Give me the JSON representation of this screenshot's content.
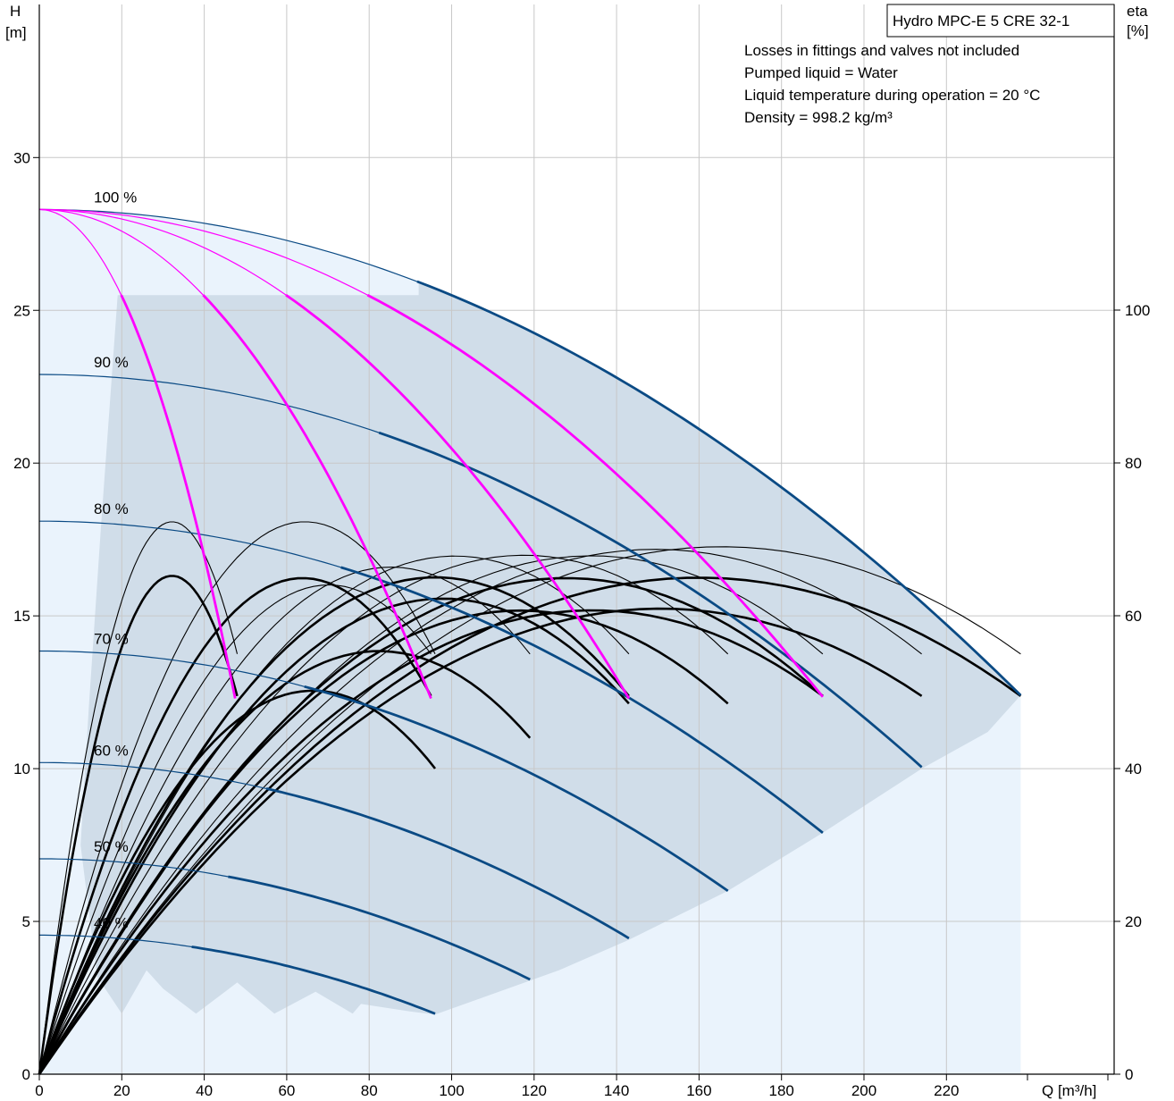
{
  "chart_data": {
    "type": "line",
    "title": "Hydro MPC-E 5 CRE 32-1",
    "notes": [
      "Losses in fittings and valves not included",
      "Pumped liquid = Water",
      "Liquid temperature during operation = 20 °C",
      "Density = 998.2 kg/m³"
    ],
    "xlabel": "Q [m³/h]",
    "ylabel_left": [
      "H",
      "[m]"
    ],
    "ylabel_right": [
      "eta",
      "[%]"
    ],
    "xlim": [
      0,
      260
    ],
    "ylim": [
      0,
      35
    ],
    "ylim_right": [
      0,
      140
    ],
    "x_ticks": [
      0,
      20,
      40,
      60,
      80,
      100,
      120,
      140,
      160,
      180,
      200,
      220
    ],
    "y_ticks": [
      0,
      5,
      10,
      15,
      20,
      25,
      30
    ],
    "y_ticks_right": [
      0,
      20,
      40,
      60,
      80,
      100
    ],
    "grid": true,
    "colors": {
      "speed_curve": "#0a4a84",
      "max_speed_curve": "#ff00ff",
      "efficiency_curve": "#000000",
      "operating_area": "#d0dde9",
      "extended_area": "#eaf3fc",
      "grid": "#c8c8c8"
    },
    "speed_labels": [
      {
        "text": "100 %",
        "h": 28.3
      },
      {
        "text": "90 %",
        "h": 22.9
      },
      {
        "text": "80 %",
        "h": 18.1
      },
      {
        "text": "70 %",
        "h": 13.85
      },
      {
        "text": "60 %",
        "h": 10.2
      },
      {
        "text": "50 %",
        "h": 7.05
      },
      {
        "text": "40 %",
        "h": 4.55
      }
    ],
    "speed_curves": [
      {
        "speed": 100,
        "shutoff_head": 28.3,
        "max_flow": 238,
        "end_head": 12.4
      },
      {
        "speed": 90,
        "shutoff_head": 22.9,
        "max_flow": 214,
        "end_head": 10.05
      },
      {
        "speed": 80,
        "shutoff_head": 18.1,
        "max_flow": 190,
        "end_head": 7.9
      },
      {
        "speed": 70,
        "shutoff_head": 13.85,
        "max_flow": 167,
        "end_head": 6.0
      },
      {
        "speed": 60,
        "shutoff_head": 10.2,
        "max_flow": 143,
        "end_head": 4.45
      },
      {
        "speed": 50,
        "shutoff_head": 7.05,
        "max_flow": 119,
        "end_head": 3.1
      },
      {
        "speed": 40,
        "shutoff_head": 4.55,
        "max_flow": 96,
        "end_head": 1.98
      }
    ],
    "max_speed_pump_curves": [
      {
        "pumps": 1,
        "max_flow": 47.5,
        "end_head": 12.3
      },
      {
        "pumps": 2,
        "max_flow": 95,
        "end_head": 12.3
      },
      {
        "pumps": 3,
        "max_flow": 143,
        "end_head": 12.3
      },
      {
        "pumps": 4,
        "max_flow": 190,
        "end_head": 12.35
      },
      {
        "pumps": 5,
        "max_flow": 238,
        "end_head": 12.4
      }
    ],
    "efficiency_curves": [
      {
        "q_best": 32,
        "eta_best": 72,
        "q_end": 48,
        "eta_end": 55
      },
      {
        "q_best": 64,
        "eta_best": 72,
        "q_end": 96,
        "eta_end": 55
      },
      {
        "q_best": 83,
        "eta_best": 72,
        "q_end": 95,
        "eta_end": 55
      },
      {
        "q_best": 96,
        "eta_best": 72,
        "q_end": 119,
        "eta_end": 55
      },
      {
        "q_best": 110,
        "eta_best": 72,
        "q_end": 143,
        "eta_end": 55
      },
      {
        "q_best": 128,
        "eta_best": 72,
        "q_end": 167,
        "eta_end": 55
      },
      {
        "q_best": 146,
        "eta_best": 72,
        "q_end": 190,
        "eta_end": 55
      },
      {
        "q_best": 160,
        "eta_best": 72,
        "q_end": 214,
        "eta_end": 55
      },
      {
        "q_best": 176,
        "eta_best": 72,
        "q_end": 238,
        "eta_end": 55
      },
      {
        "q_best": 32,
        "eta_best": 65,
        "q_end": 48,
        "eta_end": 49.5
      },
      {
        "q_best": 64,
        "eta_best": 65,
        "q_end": 95,
        "eta_end": 49.5
      },
      {
        "q_best": 96,
        "eta_best": 65,
        "q_end": 143,
        "eta_end": 49.5
      },
      {
        "q_best": 128,
        "eta_best": 65,
        "q_end": 190,
        "eta_end": 49.5
      },
      {
        "q_best": 160,
        "eta_best": 65,
        "q_end": 238,
        "eta_end": 49.5
      },
      {
        "q_best": 102,
        "eta_best": 64,
        "q_end": 143,
        "eta_end": 48.5
      },
      {
        "q_best": 126,
        "eta_best": 64,
        "q_end": 167,
        "eta_end": 48.5
      },
      {
        "q_best": 145,
        "eta_best": 64,
        "q_end": 190,
        "eta_end": 49.5
      },
      {
        "q_best": 162,
        "eta_best": 64,
        "q_end": 214,
        "eta_end": 49.5
      },
      {
        "q_best": 86,
        "eta_best": 57,
        "q_end": 119,
        "eta_end": 44
      },
      {
        "q_best": 68,
        "eta_best": 51,
        "q_end": 96,
        "eta_end": 40
      }
    ]
  }
}
